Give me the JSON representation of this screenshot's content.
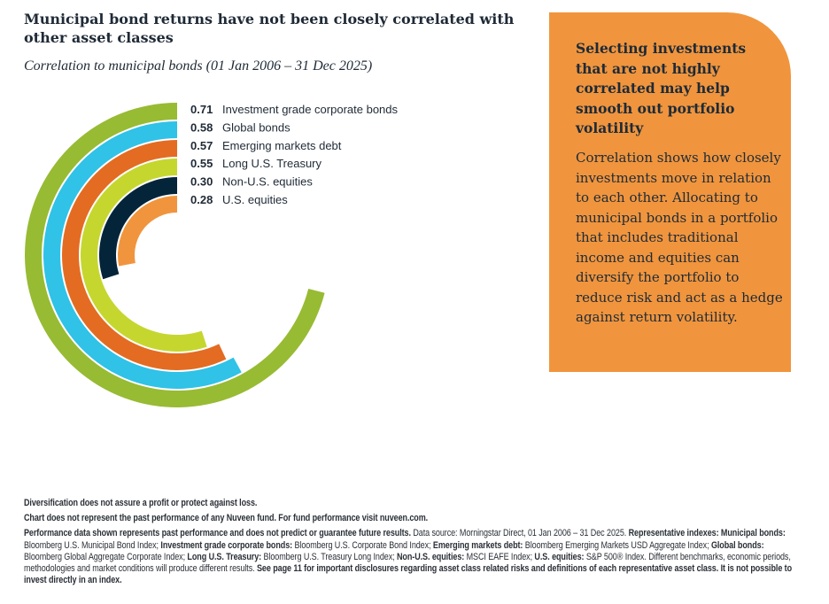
{
  "title": "Municipal bond returns have not been closely correlated with other asset classes",
  "subtitle": "Correlation to municipal bonds (01 Jan 2006 – 31 Dec 2025)",
  "chart_data": {
    "type": "radial-bar",
    "title": "Correlation to municipal bonds (01 Jan 2006 – 31 Dec 2025)",
    "range": [
      0,
      1
    ],
    "categories": [
      "Investment grade corporate bonds",
      "Global bonds",
      "Emerging markets debt",
      "Long U.S. Treasury",
      "Non-U.S. equities",
      "U.S. equities"
    ],
    "values": [
      0.71,
      0.58,
      0.57,
      0.55,
      0.3,
      0.28
    ],
    "value_labels": [
      "0.71",
      "0.58",
      "0.57",
      "0.55",
      "0.30",
      "0.28"
    ],
    "colors": [
      "#97bb33",
      "#30c2e7",
      "#e36c22",
      "#c5d72f",
      "#04243a",
      "#f0953d"
    ],
    "legend": "top-right"
  },
  "panel": {
    "heading": "Selecting investments that are not highly correlated may help smooth out portfolio volatility",
    "body": "Correlation shows how closely investments move in relation to each other. Allocating to municipal bonds in a portfolio that includes traditional income and equities can diversify the portfolio to reduce risk and act as a hedge against return volatility.",
    "color": "#f0953d"
  },
  "footer": {
    "line1": "Diversification does not assure a profit or protect against loss.",
    "line2": "Chart does not represent the past performance of any Nuveen fund. For fund performance visit nuveen.com.",
    "p3a": "Performance data shown represents past performance and does not predict or guarantee future results.",
    "p3b": " Data source: Morningstar Direct, 01 Jan 2006 – 31 Dec 2025. ",
    "p3c": "Representative indexes: Municipal bonds:",
    "p3d": " Bloomberg U.S. Municipal Bond Index; ",
    "p3e": "Investment grade corporate bonds:",
    "p3f": " Bloomberg U.S. Corporate Bond Index; ",
    "p3g": "Emerging markets debt:",
    "p3h": " Bloomberg Emerging Markets USD Aggregate Index; ",
    "p3i": "Global bonds:",
    "p3j": " Bloomberg Global Aggregate Corporate Index; ",
    "p3k": "Long U.S. Treasury:",
    "p3l": " Bloomberg U.S. Treasury Long Index; ",
    "p3m": "Non-U.S. equities:",
    "p3n": " MSCI EAFE Index; ",
    "p3o": "U.S. equities:",
    "p3p": " S&P 500® Index. Different benchmarks, economic periods, methodologies and market conditions will produce different results. ",
    "p3q": "See page 11 for important disclosures regarding asset class related risks and definitions of each representative asset class. It is not possible to invest directly in an index."
  }
}
